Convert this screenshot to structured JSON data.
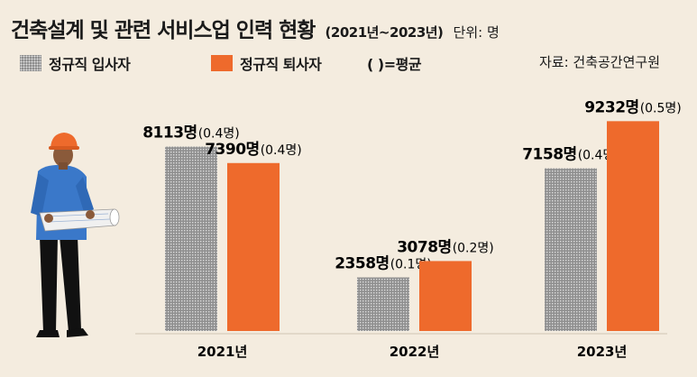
{
  "header": {
    "title": "건축설계 및 관련 서비스업 인력 현황",
    "period": "(2021년~2023년)",
    "unit": "단위: 명"
  },
  "legend": {
    "hire_label": "정규직 입사자",
    "leave_label": "정규직 퇴사자",
    "avg_label": "(  )=평균",
    "source": "자료: 건축공간연구원"
  },
  "colors": {
    "background": "#f4ecdf",
    "hire": "#8a8a8a",
    "leave": "#ee6a2c"
  },
  "chart_data": {
    "type": "bar",
    "categories": [
      "2021년",
      "2022년",
      "2023년"
    ],
    "series": [
      {
        "name": "정규직 입사자",
        "values": [
          8113,
          2358,
          7158
        ],
        "labels": [
          "8113명",
          "2358명",
          "7158명"
        ],
        "averages": [
          "(0.4명)",
          "(0.1명)",
          "(0.4명)"
        ]
      },
      {
        "name": "정규직 퇴사자",
        "values": [
          7390,
          3078,
          9232
        ],
        "labels": [
          "7390명",
          "3078명",
          "9232명"
        ],
        "averages": [
          "(0.4명)",
          "(0.2명)",
          "(0.5명)"
        ]
      }
    ],
    "ylim": [
      0,
      10000
    ],
    "grid": false,
    "legend_position": "top-left"
  }
}
